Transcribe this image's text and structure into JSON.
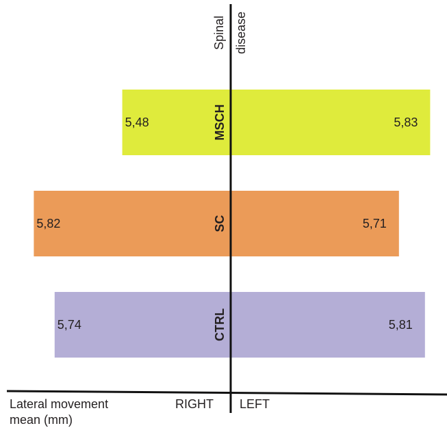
{
  "chart_data": {
    "type": "bar",
    "orientation": "horizontal-diverging",
    "categories": [
      "MSCH",
      "SC",
      "CTRL"
    ],
    "series": [
      {
        "name": "RIGHT",
        "values": [
          5.48,
          5.82,
          5.74
        ],
        "labels": [
          "5,48",
          "5,82",
          "5,74"
        ]
      },
      {
        "name": "LEFT",
        "values": [
          5.83,
          5.71,
          5.81
        ],
        "labels": [
          "5,83",
          "5,71",
          "5,81"
        ]
      }
    ],
    "colors": [
      "#dfeb3c",
      "#eb9b58",
      "#b4aed6"
    ],
    "axis_label_lines": [
      "Lateral movement",
      "mean (mm)"
    ],
    "side_labels": {
      "right": "RIGHT",
      "left": "LEFT"
    },
    "vertical_axis_label_lines": [
      "Spinal",
      "disease"
    ]
  }
}
